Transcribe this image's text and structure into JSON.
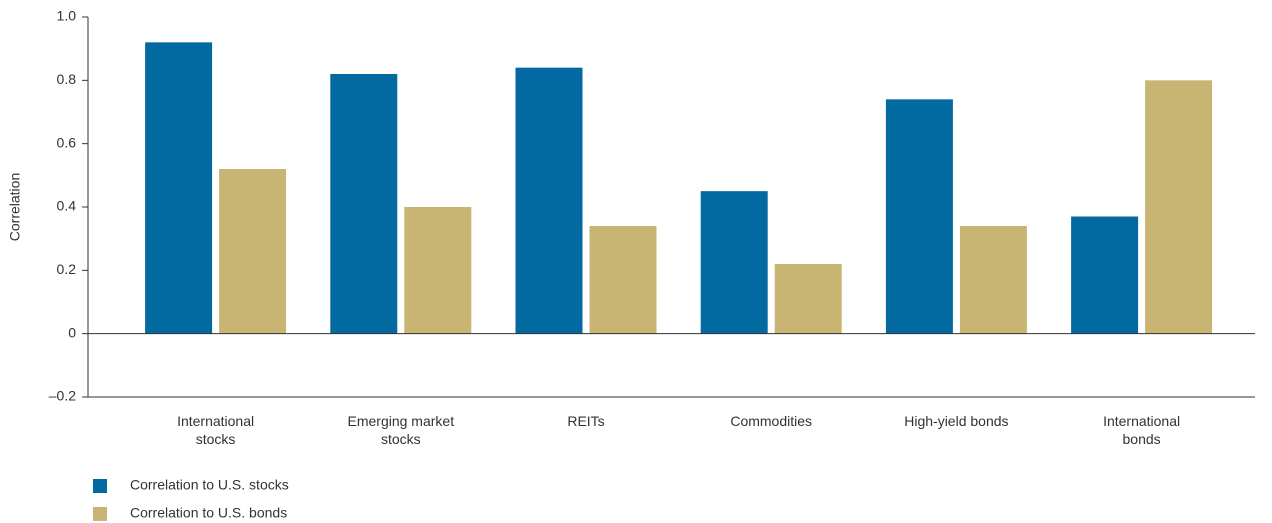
{
  "chart_data": {
    "type": "bar",
    "y_label": "Correlation",
    "categories": [
      "International stocks",
      "Emerging market stocks",
      "REITs",
      "Commodities",
      "High-yield bonds",
      "International bonds"
    ],
    "series": [
      {
        "name": "Correlation to U.S. stocks",
        "color": "#0369a1",
        "values": [
          0.92,
          0.82,
          0.84,
          0.45,
          0.74,
          0.37
        ]
      },
      {
        "name": "Correlation to U.S. bonds",
        "color": "#c8b574",
        "values": [
          0.52,
          0.4,
          0.34,
          0.22,
          0.34,
          0.8
        ]
      }
    ],
    "ylim": [
      -0.2,
      1
    ],
    "yticks": [
      {
        "value": -0.2,
        "label": "–0.2"
      },
      0,
      0.2,
      0.4,
      0.6,
      0.8,
      {
        "value": 1,
        "label": "1.0"
      }
    ],
    "legend": "bottom-left"
  }
}
